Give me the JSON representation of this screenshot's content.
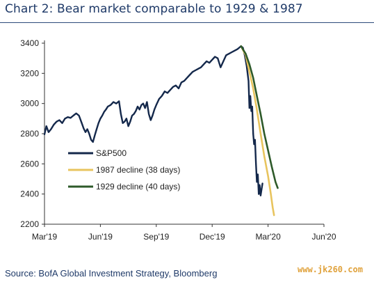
{
  "header": {
    "title": "Chart 2: Bear market comparable to 1929 & 1987"
  },
  "footer": {
    "source": "Source: BofA Global Investment Strategy, Bloomberg",
    "watermark": "www.jk260.com"
  },
  "chart_data": {
    "type": "line",
    "title": "Chart 2: Bear market comparable to 1929 & 1987",
    "xlabel": "",
    "ylabel": "",
    "ylim": [
      2200,
      3400
    ],
    "yticks": [
      2200,
      2400,
      2600,
      2800,
      3000,
      3200,
      3400
    ],
    "xticks": [
      "Mar'19",
      "Jun'19",
      "Sep'19",
      "Dec'19",
      "Mar'20",
      "Jun'20"
    ],
    "x_months_range": [
      0,
      15
    ],
    "legend": {
      "position": "lower-left"
    },
    "series": [
      {
        "name": "S&P500",
        "color": "#14284b",
        "points": [
          [
            0.0,
            2796
          ],
          [
            0.1,
            2850
          ],
          [
            0.22,
            2810
          ],
          [
            0.35,
            2830
          ],
          [
            0.5,
            2860
          ],
          [
            0.65,
            2880
          ],
          [
            0.8,
            2890
          ],
          [
            0.95,
            2870
          ],
          [
            1.1,
            2900
          ],
          [
            1.25,
            2910
          ],
          [
            1.4,
            2905
          ],
          [
            1.55,
            2920
          ],
          [
            1.7,
            2935
          ],
          [
            1.85,
            2920
          ],
          [
            2.0,
            2870
          ],
          [
            2.1,
            2835
          ],
          [
            2.2,
            2810
          ],
          [
            2.3,
            2830
          ],
          [
            2.4,
            2800
          ],
          [
            2.5,
            2760
          ],
          [
            2.6,
            2745
          ],
          [
            2.7,
            2790
          ],
          [
            2.8,
            2830
          ],
          [
            2.9,
            2870
          ],
          [
            3.0,
            2900
          ],
          [
            3.1,
            2920
          ],
          [
            3.2,
            2945
          ],
          [
            3.3,
            2960
          ],
          [
            3.4,
            2980
          ],
          [
            3.55,
            2990
          ],
          [
            3.7,
            3010
          ],
          [
            3.85,
            3000
          ],
          [
            4.0,
            3015
          ],
          [
            4.1,
            2930
          ],
          [
            4.2,
            2870
          ],
          [
            4.3,
            2880
          ],
          [
            4.4,
            2900
          ],
          [
            4.5,
            2850
          ],
          [
            4.6,
            2880
          ],
          [
            4.7,
            2920
          ],
          [
            4.8,
            2930
          ],
          [
            4.9,
            2950
          ],
          [
            5.0,
            2980
          ],
          [
            5.1,
            2960
          ],
          [
            5.2,
            2990
          ],
          [
            5.3,
            3000
          ],
          [
            5.4,
            2970
          ],
          [
            5.5,
            3010
          ],
          [
            5.6,
            2930
          ],
          [
            5.7,
            2890
          ],
          [
            5.8,
            2920
          ],
          [
            5.9,
            2960
          ],
          [
            6.0,
            2990
          ],
          [
            6.15,
            3030
          ],
          [
            6.3,
            3050
          ],
          [
            6.45,
            3080
          ],
          [
            6.6,
            3070
          ],
          [
            6.75,
            3090
          ],
          [
            6.9,
            3110
          ],
          [
            7.05,
            3120
          ],
          [
            7.2,
            3100
          ],
          [
            7.35,
            3140
          ],
          [
            7.5,
            3150
          ],
          [
            7.65,
            3170
          ],
          [
            7.8,
            3190
          ],
          [
            7.95,
            3210
          ],
          [
            8.1,
            3220
          ],
          [
            8.25,
            3230
          ],
          [
            8.4,
            3240
          ],
          [
            8.55,
            3260
          ],
          [
            8.7,
            3280
          ],
          [
            8.85,
            3270
          ],
          [
            9.0,
            3290
          ],
          [
            9.15,
            3310
          ],
          [
            9.3,
            3300
          ],
          [
            9.45,
            3240
          ],
          [
            9.6,
            3280
          ],
          [
            9.75,
            3320
          ],
          [
            9.9,
            3330
          ],
          [
            10.05,
            3340
          ],
          [
            10.2,
            3350
          ],
          [
            10.35,
            3360
          ],
          [
            10.45,
            3370
          ],
          [
            10.55,
            3380
          ],
          [
            10.65,
            3370
          ],
          [
            10.75,
            3320
          ],
          [
            10.85,
            3250
          ],
          [
            10.95,
            3150
          ],
          [
            11.0,
            2970
          ],
          [
            11.05,
            3050
          ],
          [
            11.1,
            2950
          ],
          [
            11.15,
            2980
          ],
          [
            11.2,
            2800
          ],
          [
            11.25,
            2730
          ],
          [
            11.3,
            2760
          ],
          [
            11.35,
            2600
          ],
          [
            11.4,
            2480
          ],
          [
            11.45,
            2530
          ],
          [
            11.5,
            2400
          ],
          [
            11.55,
            2460
          ],
          [
            11.6,
            2390
          ],
          [
            11.7,
            2470
          ]
        ]
      },
      {
        "name": "1987 decline (38 days)",
        "color": "#e8c45e",
        "points": [
          [
            10.55,
            3380
          ],
          [
            10.8,
            3320
          ],
          [
            11.0,
            3210
          ],
          [
            11.2,
            3100
          ],
          [
            11.4,
            2960
          ],
          [
            11.6,
            2800
          ],
          [
            11.8,
            2650
          ],
          [
            12.0,
            2520
          ],
          [
            12.15,
            2400
          ],
          [
            12.25,
            2310
          ],
          [
            12.32,
            2260
          ]
        ]
      },
      {
        "name": "1929 decline (40 days)",
        "color": "#2e5a2a",
        "points": [
          [
            10.55,
            3380
          ],
          [
            10.8,
            3330
          ],
          [
            11.0,
            3260
          ],
          [
            11.2,
            3170
          ],
          [
            11.4,
            3050
          ],
          [
            11.6,
            2930
          ],
          [
            11.8,
            2800
          ],
          [
            12.0,
            2690
          ],
          [
            12.2,
            2580
          ],
          [
            12.4,
            2480
          ],
          [
            12.52,
            2440
          ]
        ]
      }
    ]
  }
}
